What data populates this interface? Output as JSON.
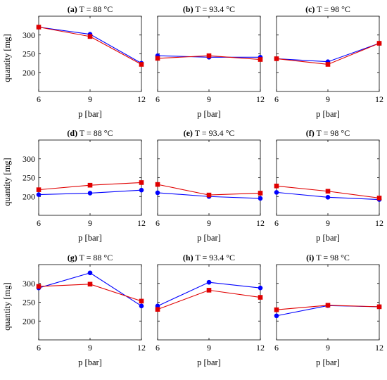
{
  "colors": {
    "blue": "#0000ff",
    "red": "#e00000"
  },
  "chart_data": [
    {
      "type": "line",
      "letter": "(a)",
      "title": "T = 88 °C",
      "xlabel": "p [bar]",
      "ylabel": "quantity [mg]",
      "x": [
        6,
        9,
        12
      ],
      "xticks": [
        "6",
        "9",
        "12"
      ],
      "ylim": [
        150,
        350
      ],
      "yticks": [
        "200",
        "250",
        "300"
      ],
      "series": [
        {
          "marker": "circle",
          "color": "blue",
          "values": [
            321,
            302,
            225
          ]
        },
        {
          "marker": "square",
          "color": "red",
          "values": [
            321,
            296,
            222
          ]
        }
      ]
    },
    {
      "type": "line",
      "letter": "(b)",
      "title": "T = 93.4 °C",
      "xlabel": "p [bar]",
      "ylabel": "",
      "x": [
        6,
        9,
        12
      ],
      "xticks": [
        "6",
        "9",
        "12"
      ],
      "ylim": [
        150,
        350
      ],
      "yticks": [],
      "series": [
        {
          "marker": "circle",
          "color": "blue",
          "values": [
            245,
            241,
            241
          ]
        },
        {
          "marker": "square",
          "color": "red",
          "values": [
            238,
            245,
            235
          ]
        }
      ]
    },
    {
      "type": "line",
      "letter": "(c)",
      "title": "T = 98 °C",
      "xlabel": "p [bar]",
      "ylabel": "",
      "x": [
        6,
        9,
        12
      ],
      "xticks": [
        "6",
        "9",
        "12"
      ],
      "ylim": [
        150,
        350
      ],
      "yticks": [],
      "series": [
        {
          "marker": "circle",
          "color": "blue",
          "values": [
            237,
            229,
            278
          ]
        },
        {
          "marker": "square",
          "color": "red",
          "values": [
            237,
            222,
            278
          ]
        }
      ]
    },
    {
      "type": "line",
      "letter": "(d)",
      "title": "T = 88 °C",
      "xlabel": "p [bar]",
      "ylabel": "quantity [mg]",
      "x": [
        6,
        9,
        12
      ],
      "xticks": [
        "6",
        "9",
        "12"
      ],
      "ylim": [
        150,
        350
      ],
      "yticks": [
        "200",
        "250",
        "300"
      ],
      "series": [
        {
          "marker": "circle",
          "color": "blue",
          "values": [
            205,
            209,
            217
          ]
        },
        {
          "marker": "square",
          "color": "red",
          "values": [
            218,
            230,
            237
          ]
        }
      ]
    },
    {
      "type": "line",
      "letter": "(e)",
      "title": "T = 93.4 °C",
      "xlabel": "p [bar]",
      "ylabel": "",
      "x": [
        6,
        9,
        12
      ],
      "xticks": [
        "6",
        "9",
        "12"
      ],
      "ylim": [
        150,
        350
      ],
      "yticks": [],
      "series": [
        {
          "marker": "circle",
          "color": "blue",
          "values": [
            210,
            200,
            195
          ]
        },
        {
          "marker": "square",
          "color": "red",
          "values": [
            232,
            204,
            209
          ]
        }
      ]
    },
    {
      "type": "line",
      "letter": "(f)",
      "title": "T = 98 °C",
      "xlabel": "p [bar]",
      "ylabel": "",
      "x": [
        6,
        9,
        12
      ],
      "xticks": [
        "6",
        "9",
        "12"
      ],
      "ylim": [
        150,
        350
      ],
      "yticks": [],
      "series": [
        {
          "marker": "circle",
          "color": "blue",
          "values": [
            211,
            198,
            192
          ]
        },
        {
          "marker": "square",
          "color": "red",
          "values": [
            228,
            214,
            196
          ]
        }
      ]
    },
    {
      "type": "line",
      "letter": "(g)",
      "title": "T = 88 °C",
      "xlabel": "p [bar]",
      "ylabel": "quantity [mg]",
      "x": [
        6,
        9,
        12
      ],
      "xticks": [
        "6",
        "9",
        "12"
      ],
      "ylim": [
        150,
        350
      ],
      "yticks": [
        "200",
        "250",
        "300"
      ],
      "series": [
        {
          "marker": "circle",
          "color": "blue",
          "values": [
            288,
            328,
            240
          ]
        },
        {
          "marker": "square",
          "color": "red",
          "values": [
            292,
            298,
            253
          ]
        }
      ]
    },
    {
      "type": "line",
      "letter": "(h)",
      "title": "T = 93.4 °C",
      "xlabel": "p [bar]",
      "ylabel": "",
      "x": [
        6,
        9,
        12
      ],
      "xticks": [
        "6",
        "9",
        "12"
      ],
      "ylim": [
        150,
        350
      ],
      "yticks": [],
      "series": [
        {
          "marker": "circle",
          "color": "blue",
          "values": [
            240,
            303,
            288
          ]
        },
        {
          "marker": "square",
          "color": "red",
          "values": [
            231,
            282,
            263
          ]
        }
      ]
    },
    {
      "type": "line",
      "letter": "(i)",
      "title": "T = 98 °C",
      "xlabel": "p [bar]",
      "ylabel": "",
      "x": [
        6,
        9,
        12
      ],
      "xticks": [
        "6",
        "9",
        "12"
      ],
      "ylim": [
        150,
        350
      ],
      "yticks": [],
      "series": [
        {
          "marker": "circle",
          "color": "blue",
          "values": [
            214,
            241,
            238
          ]
        },
        {
          "marker": "square",
          "color": "red",
          "values": [
            230,
            242,
            238
          ]
        }
      ]
    }
  ]
}
